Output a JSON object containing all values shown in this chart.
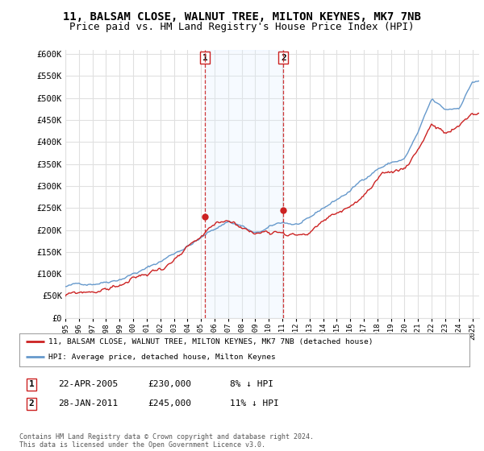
{
  "title": "11, BALSAM CLOSE, WALNUT TREE, MILTON KEYNES, MK7 7NB",
  "subtitle": "Price paid vs. HM Land Registry's House Price Index (HPI)",
  "ylabel_ticks": [
    "£0",
    "£50K",
    "£100K",
    "£150K",
    "£200K",
    "£250K",
    "£300K",
    "£350K",
    "£400K",
    "£450K",
    "£500K",
    "£550K",
    "£600K"
  ],
  "ytick_values": [
    0,
    50000,
    100000,
    150000,
    200000,
    250000,
    300000,
    350000,
    400000,
    450000,
    500000,
    550000,
    600000
  ],
  "ylim": [
    0,
    610000
  ],
  "xlim_start": 1995.0,
  "xlim_end": 2025.5,
  "background_color": "#ffffff",
  "plot_bg_color": "#ffffff",
  "grid_color": "#e0e0e0",
  "legend_entry1": "11, BALSAM CLOSE, WALNUT TREE, MILTON KEYNES, MK7 7NB (detached house)",
  "legend_entry2": "HPI: Average price, detached house, Milton Keynes",
  "annotation1_label": "1",
  "annotation1_date": "22-APR-2005",
  "annotation1_price": "£230,000",
  "annotation1_hpi": "8% ↓ HPI",
  "annotation1_year": 2005.3,
  "annotation1_value": 230000,
  "annotation2_label": "2",
  "annotation2_date": "28-JAN-2011",
  "annotation2_price": "£245,000",
  "annotation2_hpi": "11% ↓ HPI",
  "annotation2_year": 2011.07,
  "annotation2_value": 245000,
  "shade_color": "#ddeeff",
  "footnote": "Contains HM Land Registry data © Crown copyright and database right 2024.\nThis data is licensed under the Open Government Licence v3.0.",
  "hpi_color": "#6699cc",
  "price_color": "#cc2222",
  "marker_color": "#cc2222",
  "vline_color": "#cc2222",
  "title_fontsize": 10,
  "subtitle_fontsize": 9
}
